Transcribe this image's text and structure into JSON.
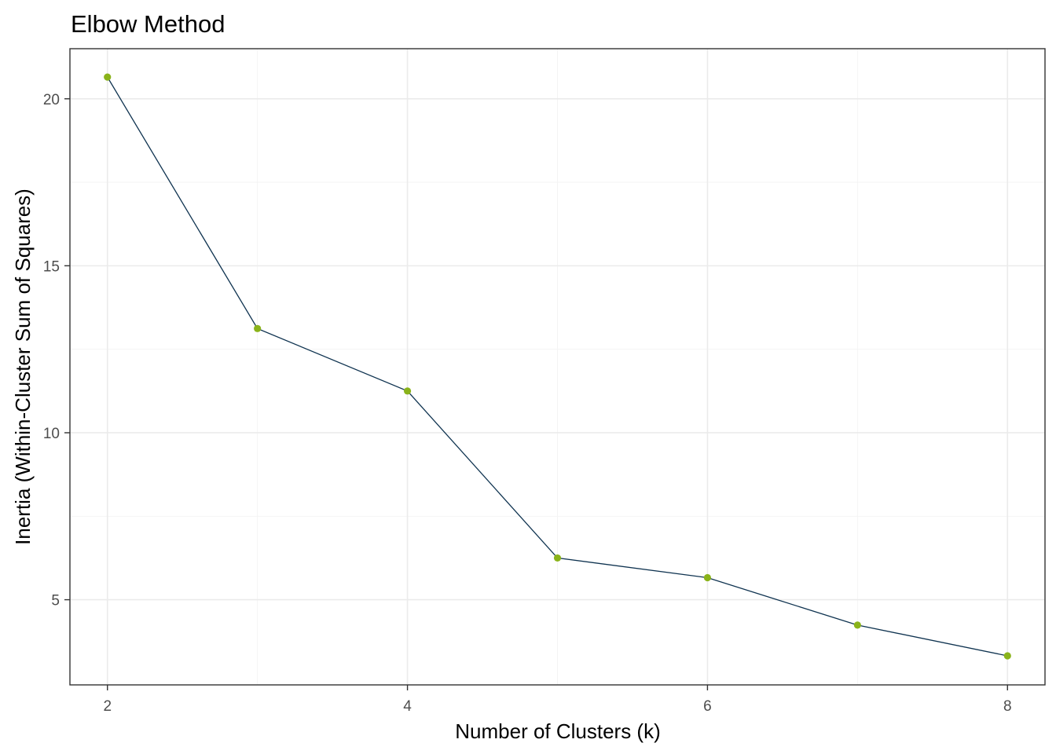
{
  "chart_data": {
    "type": "line",
    "title": "Elbow Method",
    "xlabel": "Number of Clusters (k)",
    "ylabel": "Inertia (Within-Cluster Sum of Squares)",
    "x": [
      2,
      3,
      4,
      5,
      6,
      7,
      8
    ],
    "series": [
      {
        "values": [
          20.65,
          13.12,
          11.25,
          6.25,
          5.66,
          4.24,
          3.32
        ]
      }
    ],
    "xlim": [
      1.75,
      8.25
    ],
    "ylim": [
      2.45,
      21.5
    ],
    "xticks": [
      "2",
      "4",
      "6",
      "8"
    ],
    "yticks": [
      "5",
      "10",
      "15",
      "20"
    ],
    "grid": true,
    "legend": "none",
    "colors": {
      "line": "#0f3350",
      "point": "#8ab31a"
    }
  }
}
